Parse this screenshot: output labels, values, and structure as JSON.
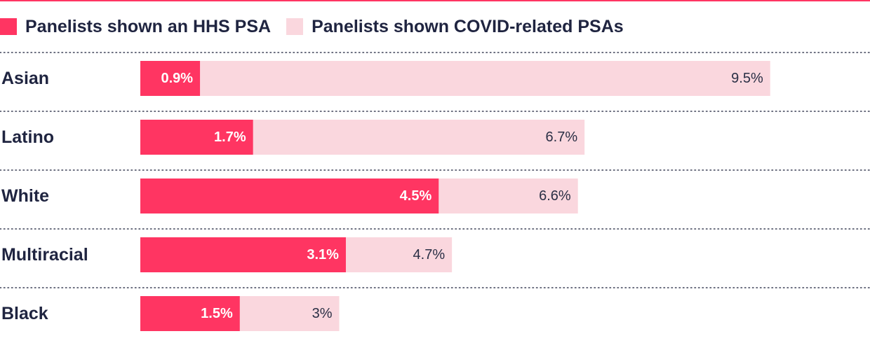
{
  "colors": {
    "hhs": "#ff3562",
    "covid": "#fad7de",
    "text": "#1f2440",
    "accent_rule": "#ff3562",
    "divider": "#3a3f55"
  },
  "legend": [
    {
      "label": "Panelists shown an HHS PSA",
      "color": "#ff3562"
    },
    {
      "label": "Panelists shown COVID-related PSAs",
      "color": "#fad7de"
    }
  ],
  "chart_data": {
    "type": "bar",
    "orientation": "horizontal",
    "stacked": "overlay",
    "categories": [
      "Asian",
      "Latino",
      "White",
      "Multiracial",
      "Black"
    ],
    "series": [
      {
        "name": "Panelists shown an HHS PSA",
        "values": [
          0.9,
          1.7,
          4.5,
          3.1,
          1.5
        ],
        "labels": [
          "0.9%",
          "1.7%",
          "4.5%",
          "3.1%",
          "1.5%"
        ]
      },
      {
        "name": "Panelists shown COVID-related PSAs",
        "values": [
          9.5,
          6.7,
          6.6,
          4.7,
          3.0
        ],
        "labels": [
          "9.5%",
          "6.7%",
          "6.6%",
          "4.7%",
          "3%"
        ]
      }
    ],
    "xlim": [
      0,
      10
    ],
    "legend_position": "top-left",
    "grid": false
  }
}
